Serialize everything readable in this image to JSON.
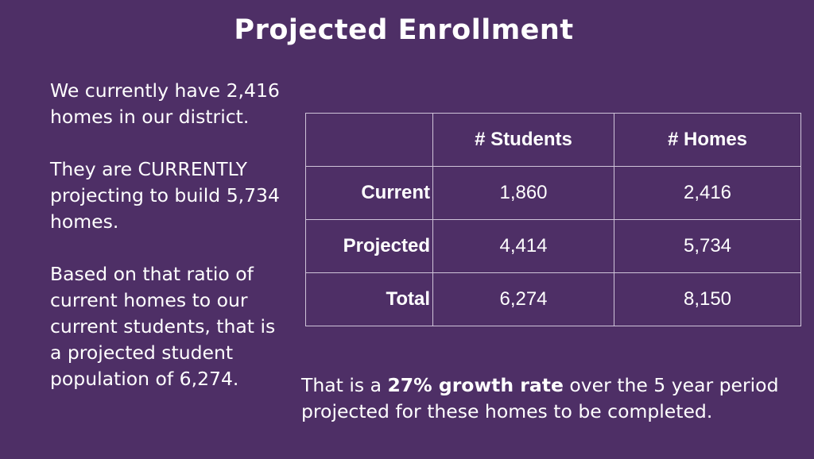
{
  "title": "Projected Enrollment",
  "left_text": {
    "p1": "We currently have 2,416 homes in our district.",
    "p2": "They are CURRENTLY projecting to build 5,734 homes.",
    "p3": "Based on that ratio of current homes to our current students, that is a projected student population of 6,274."
  },
  "table": {
    "headers": [
      "",
      "# Students",
      "# Homes"
    ],
    "rows": [
      {
        "label": "Current",
        "students": "1,860",
        "homes": "2,416"
      },
      {
        "label": "Projected",
        "students": "4,414",
        "homes": "5,734"
      },
      {
        "label": "Total",
        "students": "6,274",
        "homes": "8,150"
      }
    ]
  },
  "footer": {
    "prefix": "That is a ",
    "highlight": "27% growth rate",
    "suffix": " over the 5 year period projected for these homes to be completed."
  }
}
